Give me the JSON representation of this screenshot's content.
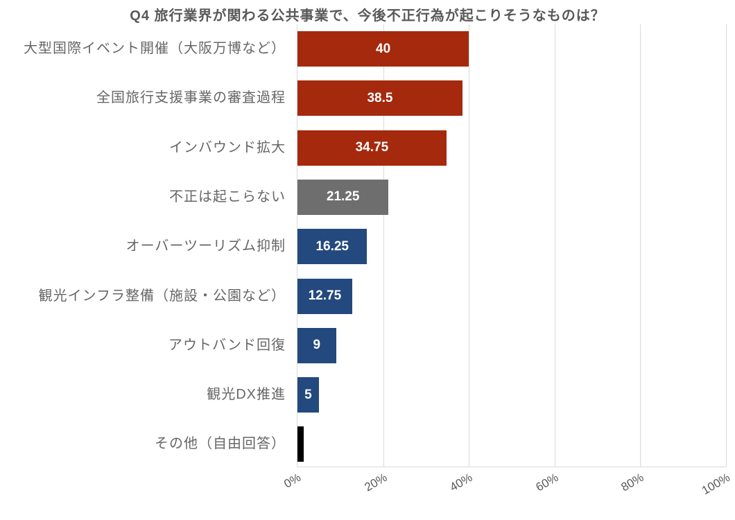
{
  "chart_data": {
    "type": "bar",
    "orientation": "horizontal",
    "title": "Q4 旅行業界が関わる公共事業で、今後不正行為が起こりそうなものは？",
    "categories": [
      "大型国際イベント開催（大阪万博など）",
      "全国旅行支援事業の審査過程",
      "インバウンド拡大",
      "不正は起こらない",
      "オーバーツーリズム抑制",
      "観光インフラ整備（施設・公園など）",
      "アウトバンド回復",
      "観光DX推進",
      "その他（自由回答）"
    ],
    "values": [
      40,
      38.5,
      34.75,
      21.25,
      16.25,
      12.75,
      9,
      5,
      1.5
    ],
    "data_labels": [
      "40",
      "38.5",
      "34.75",
      "21.25",
      "16.25",
      "12.75",
      "9",
      "5",
      ""
    ],
    "bar_colors": [
      "#A5290D",
      "#A5290D",
      "#A5290D",
      "#6E6E6E",
      "#23497E",
      "#23497E",
      "#23497E",
      "#23497E",
      "#000000"
    ],
    "x_tick_labels": [
      "0%",
      "20%",
      "40%",
      "60%",
      "80%",
      "100%"
    ],
    "x_tick_values": [
      0,
      20,
      40,
      60,
      80,
      100
    ],
    "xlim": [
      0,
      100
    ],
    "xlabel": "",
    "ylabel": "",
    "legend": false,
    "gridlines": "vertical",
    "grid_color": "#D9D9D9",
    "title_color": "#595959",
    "category_label_color": "#666666",
    "tick_label_color": "#595959",
    "value_label_color": "#FFFFFF"
  }
}
